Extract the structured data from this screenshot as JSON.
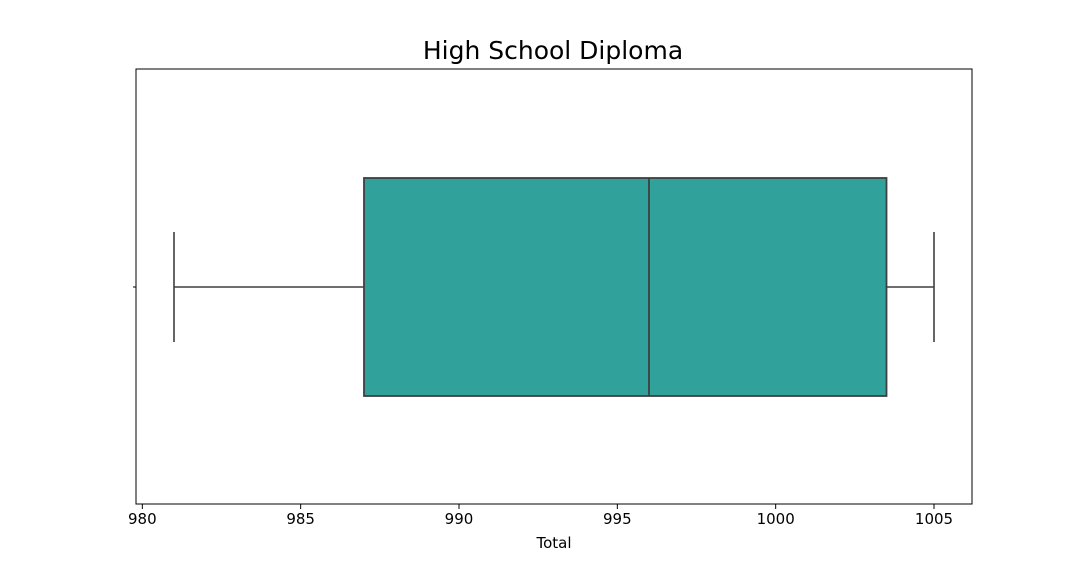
{
  "chart_data": {
    "type": "box",
    "title": "High School Diploma",
    "xlabel": "Total",
    "ylabel": "",
    "orientation": "horizontal",
    "xlim": [
      979.8,
      1006.2
    ],
    "xticks": [
      980,
      985,
      990,
      995,
      1000,
      1005
    ],
    "xtick_labels": [
      "980",
      "985",
      "990",
      "995",
      "1000",
      "1005"
    ],
    "grid": false,
    "box": {
      "whisker_low": 981,
      "q1": 987,
      "median": 996,
      "q3": 1003.5,
      "whisker_high": 1005
    },
    "colors": {
      "box_fill": "#31a19b",
      "line": "#3f3f3f",
      "frame": "#000000"
    }
  }
}
